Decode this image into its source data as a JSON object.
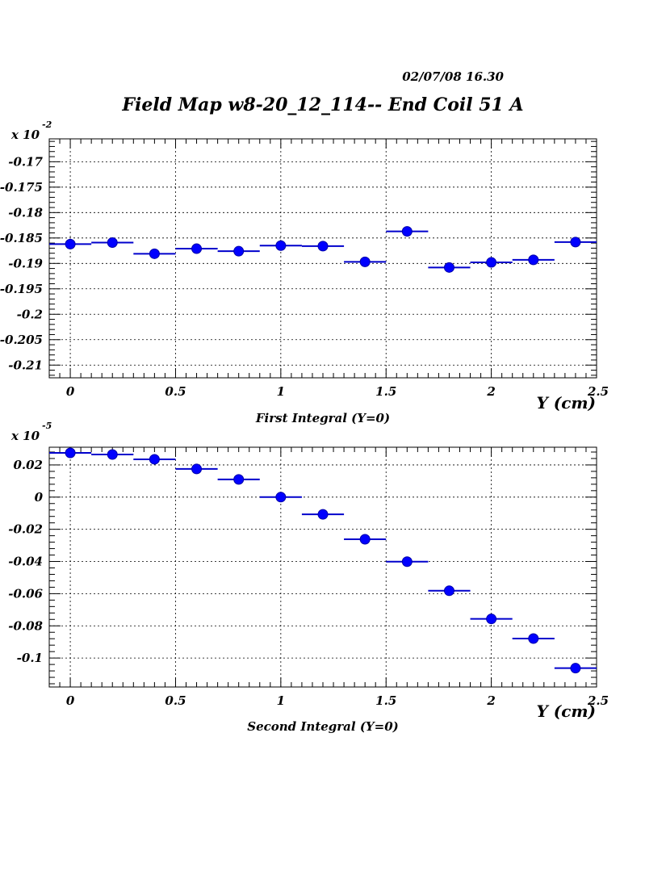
{
  "header": {
    "title": "Field Map w8-20_12_114-- End Coil 51 A",
    "timestamp": "02/07/08   16.30"
  },
  "chart_data": [
    {
      "type": "scatter",
      "title": "First Integral (Y=0)",
      "xlabel": "Y (cm)",
      "ylabel": "",
      "y_multiplier": "x 10",
      "y_exponent": "-2",
      "xlim": [
        -0.1,
        2.5
      ],
      "ylim": [
        -0.2125,
        -0.1655
      ],
      "x_ticks": [
        0,
        0.5,
        1,
        1.5,
        2,
        2.5
      ],
      "x_tick_labels": [
        "0",
        "0.5",
        "1",
        "1.5",
        "2",
        "2.5"
      ],
      "y_ticks": [
        -0.17,
        -0.175,
        -0.18,
        -0.185,
        -0.19,
        -0.195,
        -0.2,
        -0.205,
        -0.21
      ],
      "y_tick_labels": [
        "-0.17",
        "-0.175",
        "-0.18",
        "-0.185",
        "-0.19",
        "-0.195",
        "-0.2",
        "-0.205",
        "-0.21"
      ],
      "grid": true,
      "x_error": 0.1,
      "series": [
        {
          "color": "#0000ff",
          "x": [
            0,
            0.2,
            0.4,
            0.6,
            0.8,
            1.0,
            1.2,
            1.4,
            1.6,
            1.8,
            2.0,
            2.2,
            2.4
          ],
          "y": [
            -0.1862,
            -0.1859,
            -0.1881,
            -0.1871,
            -0.1876,
            -0.1865,
            -0.1866,
            -0.1897,
            -0.1837,
            -0.1908,
            -0.1898,
            -0.1893,
            -0.1858
          ]
        }
      ]
    },
    {
      "type": "scatter",
      "title": "Second Integral (Y=0)",
      "xlabel": "Y (cm)",
      "ylabel": "",
      "y_multiplier": "x 10",
      "y_exponent": "-5",
      "xlim": [
        -0.1,
        2.5
      ],
      "ylim": [
        -0.118,
        0.031
      ],
      "x_ticks": [
        0,
        0.5,
        1,
        1.5,
        2,
        2.5
      ],
      "x_tick_labels": [
        "0",
        "0.5",
        "1",
        "1.5",
        "2",
        "2.5"
      ],
      "y_ticks": [
        0.02,
        0,
        -0.02,
        -0.04,
        -0.06,
        -0.08,
        -0.1
      ],
      "y_tick_labels": [
        "0.02",
        "0",
        "-0.02",
        "-0.04",
        "-0.06",
        "-0.08",
        "-0.1"
      ],
      "grid": true,
      "x_error": 0.1,
      "series": [
        {
          "color": "#0000ff",
          "x": [
            0,
            0.2,
            0.4,
            0.6,
            0.8,
            1.0,
            1.2,
            1.4,
            1.6,
            1.8,
            2.0,
            2.2,
            2.4
          ],
          "y": [
            0.0275,
            0.0265,
            0.0235,
            0.0175,
            0.011,
            0.0,
            -0.0107,
            -0.0262,
            -0.0401,
            -0.0582,
            -0.0757,
            -0.0879,
            -0.1063
          ]
        }
      ]
    }
  ]
}
